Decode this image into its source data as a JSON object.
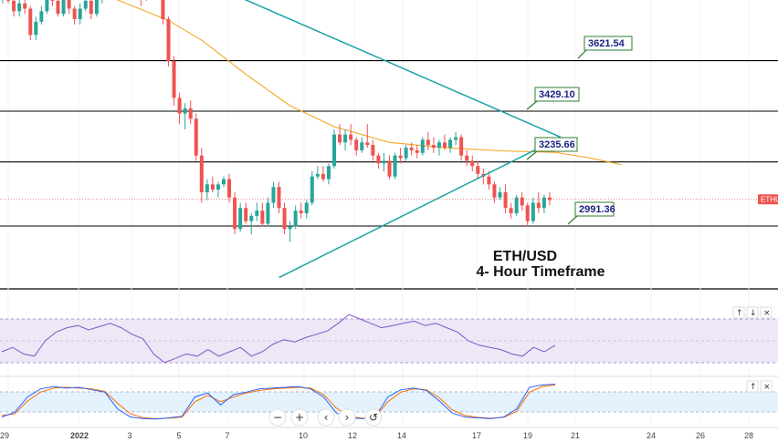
{
  "chart_data": {
    "type": "candlestick",
    "symbol_tag": "ETHU",
    "title_line1": "ETH/USD",
    "title_line2": "4- Hour Timeframe",
    "levels": [
      {
        "value": 3621.54,
        "label": "3621.54"
      },
      {
        "value": 3429.1,
        "label": "3429.10"
      },
      {
        "value": 3235.66,
        "label": "3235.66"
      },
      {
        "value": 2991.36,
        "label": "2991.36"
      }
    ],
    "last_price": 3093,
    "colors": {
      "up": "#26a69a",
      "down": "#ef5350",
      "ma": "#f5a623",
      "triangle": "#1aa3a3",
      "levelLine": "#000000",
      "rsi": "#7e57c2",
      "rsiBand": "#ede7f6",
      "stochK": "#2962ff",
      "stochD": "#ff6d00",
      "stochBand": "#e3f2fd",
      "tag": "#ef5350"
    },
    "x_ticks": [
      "29",
      "2022",
      "3",
      "5",
      "7",
      "10",
      "12",
      "14",
      "17",
      "19",
      "21",
      "24",
      "26",
      "28"
    ],
    "ma_points": [
      [
        1,
        3890
      ],
      [
        20,
        3860
      ],
      [
        30,
        3775
      ],
      [
        36,
        3700
      ],
      [
        44,
        3570
      ],
      [
        52,
        3450
      ],
      [
        60,
        3370
      ],
      [
        70,
        3310
      ],
      [
        80,
        3290
      ],
      [
        90,
        3278
      ],
      [
        100,
        3272
      ],
      [
        106,
        3252
      ],
      [
        112,
        3225
      ]
    ],
    "triangle": {
      "apex": [
        101,
        3330
      ],
      "upper_start": [
        40,
        3890
      ],
      "lower_start": [
        50,
        2795
      ]
    },
    "rsi": [
      40,
      44,
      38,
      36,
      50,
      58,
      62,
      64,
      60,
      63,
      66,
      62,
      56,
      52,
      38,
      30,
      34,
      38,
      36,
      42,
      36,
      40,
      44,
      36,
      40,
      47,
      51,
      49,
      53,
      56,
      59,
      66,
      74,
      70,
      66,
      62,
      64,
      66,
      68,
      64,
      66,
      62,
      58,
      50,
      46,
      44,
      42,
      38,
      36,
      44,
      40,
      46
    ],
    "stoch_k": [
      10,
      22,
      60,
      80,
      86,
      82,
      84,
      78,
      72,
      30,
      10,
      6,
      5,
      8,
      12,
      60,
      70,
      40,
      66,
      72,
      80,
      82,
      84,
      86,
      80,
      60,
      20,
      8,
      6,
      10,
      60,
      78,
      82,
      76,
      50,
      20,
      10,
      8,
      6,
      10,
      30,
      84,
      90,
      92
    ],
    "stoch_d": [
      14,
      18,
      50,
      72,
      82,
      84,
      82,
      80,
      74,
      44,
      18,
      8,
      6,
      7,
      10,
      48,
      64,
      48,
      60,
      70,
      76,
      80,
      82,
      84,
      82,
      66,
      32,
      12,
      7,
      9,
      48,
      72,
      80,
      78,
      58,
      28,
      14,
      9,
      7,
      9,
      24,
      72,
      86,
      90
    ],
    "controls": {
      "minus": "−",
      "plus": "+",
      "left": "‹",
      "right": "›",
      "reset": "↺"
    },
    "pane_arrows": {
      "up": "↑",
      "down": "↓",
      "close": "×"
    },
    "candles": [
      [
        3870,
        3930,
        3840,
        3900
      ],
      [
        3900,
        3920,
        3840,
        3850
      ],
      [
        3850,
        3880,
        3790,
        3810
      ],
      [
        3810,
        3870,
        3790,
        3840
      ],
      [
        3840,
        3880,
        3800,
        3820
      ],
      [
        3820,
        3830,
        3700,
        3720
      ],
      [
        3720,
        3790,
        3700,
        3770
      ],
      [
        3770,
        3830,
        3760,
        3810
      ],
      [
        3810,
        3880,
        3800,
        3870
      ],
      [
        3870,
        3900,
        3830,
        3850
      ],
      [
        3850,
        3880,
        3790,
        3800
      ],
      [
        3800,
        3880,
        3790,
        3860
      ],
      [
        3860,
        3870,
        3800,
        3820
      ],
      [
        3820,
        3830,
        3760,
        3780
      ],
      [
        3780,
        3840,
        3760,
        3820
      ],
      [
        3820,
        3870,
        3810,
        3850
      ],
      [
        3850,
        3870,
        3780,
        3800
      ],
      [
        3800,
        3880,
        3790,
        3860
      ],
      [
        3860,
        3920,
        3840,
        3900
      ],
      [
        3900,
        3930,
        3860,
        3880
      ],
      [
        3880,
        3960,
        3870,
        3940
      ],
      [
        3940,
        3960,
        3880,
        3900
      ],
      [
        3900,
        3950,
        3870,
        3930
      ],
      [
        3930,
        3960,
        3900,
        3920
      ],
      [
        3920,
        3950,
        3860,
        3870
      ],
      [
        3870,
        3900,
        3830,
        3860
      ],
      [
        3860,
        3930,
        3850,
        3920
      ],
      [
        3920,
        3940,
        3880,
        3900
      ],
      [
        3900,
        3940,
        3870,
        3920
      ],
      [
        3920,
        3930,
        3760,
        3780
      ],
      [
        3780,
        3790,
        3600,
        3620
      ],
      [
        3620,
        3640,
        3450,
        3480
      ],
      [
        3480,
        3500,
        3380,
        3420
      ],
      [
        3420,
        3460,
        3360,
        3440
      ],
      [
        3440,
        3470,
        3380,
        3400
      ],
      [
        3400,
        3420,
        3240,
        3260
      ],
      [
        3260,
        3290,
        3080,
        3120
      ],
      [
        3120,
        3170,
        3090,
        3150
      ],
      [
        3150,
        3180,
        3120,
        3130
      ],
      [
        3130,
        3160,
        3100,
        3150
      ],
      [
        3150,
        3180,
        3140,
        3170
      ],
      [
        3170,
        3190,
        3080,
        3100
      ],
      [
        3100,
        3120,
        2960,
        2980
      ],
      [
        2980,
        3080,
        2970,
        3060
      ],
      [
        3060,
        3080,
        3000,
        3010
      ],
      [
        3010,
        3040,
        2960,
        3030
      ],
      [
        3030,
        3080,
        3010,
        3050
      ],
      [
        3050,
        3080,
        2990,
        3000
      ],
      [
        3000,
        3100,
        2990,
        3080
      ],
      [
        3080,
        3160,
        3060,
        3140
      ],
      [
        3140,
        3160,
        3040,
        3060
      ],
      [
        3060,
        3080,
        2960,
        2980
      ],
      [
        2980,
        3010,
        2930,
        2990
      ],
      [
        2990,
        3070,
        2980,
        3050
      ],
      [
        3050,
        3080,
        3020,
        3040
      ],
      [
        3040,
        3090,
        3020,
        3080
      ],
      [
        3080,
        3200,
        3070,
        3180
      ],
      [
        3180,
        3220,
        3170,
        3190
      ],
      [
        3190,
        3220,
        3160,
        3170
      ],
      [
        3170,
        3230,
        3150,
        3220
      ],
      [
        3220,
        3360,
        3210,
        3340
      ],
      [
        3340,
        3380,
        3300,
        3310
      ],
      [
        3310,
        3360,
        3280,
        3340
      ],
      [
        3340,
        3380,
        3300,
        3320
      ],
      [
        3320,
        3330,
        3260,
        3280
      ],
      [
        3280,
        3330,
        3270,
        3310
      ],
      [
        3310,
        3380,
        3290,
        3300
      ],
      [
        3300,
        3320,
        3240,
        3260
      ],
      [
        3260,
        3270,
        3210,
        3230
      ],
      [
        3230,
        3270,
        3200,
        3240
      ],
      [
        3240,
        3260,
        3170,
        3180
      ],
      [
        3180,
        3270,
        3170,
        3260
      ],
      [
        3260,
        3290,
        3230,
        3250
      ],
      [
        3250,
        3300,
        3240,
        3290
      ],
      [
        3290,
        3310,
        3260,
        3280
      ],
      [
        3280,
        3300,
        3250,
        3270
      ],
      [
        3270,
        3330,
        3260,
        3320
      ],
      [
        3320,
        3350,
        3280,
        3300
      ],
      [
        3300,
        3330,
        3270,
        3290
      ],
      [
        3290,
        3320,
        3260,
        3310
      ],
      [
        3310,
        3340,
        3280,
        3290
      ],
      [
        3290,
        3330,
        3270,
        3320
      ],
      [
        3320,
        3350,
        3300,
        3330
      ],
      [
        3330,
        3340,
        3240,
        3260
      ],
      [
        3260,
        3280,
        3220,
        3240
      ],
      [
        3240,
        3260,
        3200,
        3220
      ],
      [
        3220,
        3240,
        3170,
        3190
      ],
      [
        3190,
        3210,
        3150,
        3180
      ],
      [
        3180,
        3200,
        3130,
        3150
      ],
      [
        3150,
        3160,
        3080,
        3100
      ],
      [
        3100,
        3140,
        3090,
        3120
      ],
      [
        3120,
        3150,
        3040,
        3060
      ],
      [
        3060,
        3080,
        3020,
        3040
      ],
      [
        3040,
        3110,
        3030,
        3100
      ],
      [
        3100,
        3120,
        3050,
        3070
      ],
      [
        3070,
        3080,
        2990,
        3010
      ],
      [
        3010,
        3100,
        3000,
        3080
      ],
      [
        3080,
        3120,
        3040,
        3060
      ],
      [
        3060,
        3110,
        3040,
        3100
      ],
      [
        3100,
        3120,
        3070,
        3090
      ]
    ]
  }
}
